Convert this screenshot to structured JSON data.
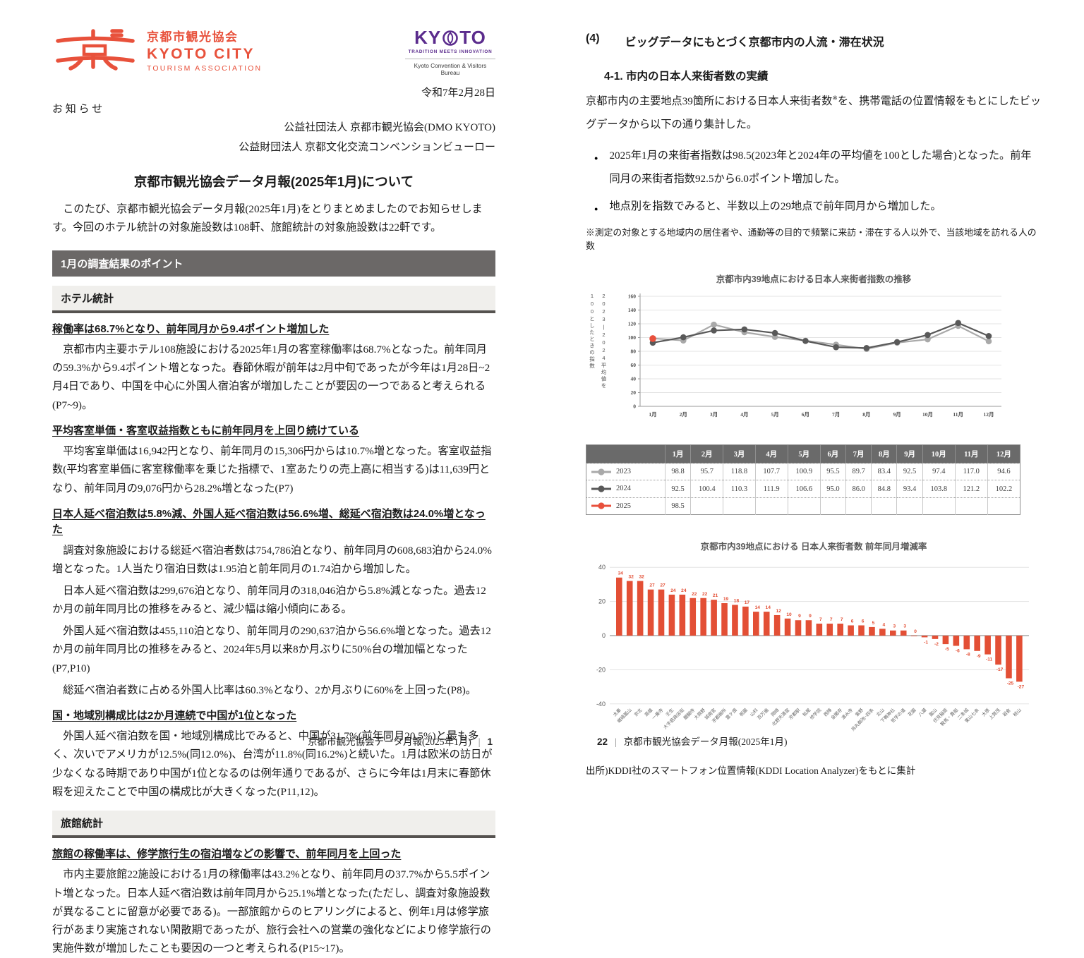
{
  "left_page": {
    "logo": {
      "org_ja": "京都市観光協会",
      "org_en_line1": "KYOTO CITY",
      "org_en_line2": "TOURISM ASSOCIATION",
      "accent_color": "#E8513B"
    },
    "partner_logo": {
      "wordmark_left": "KY",
      "wordmark_right": "TO",
      "tagline": "TRADITION MEETS INNOVATION",
      "subtitle": "Kyoto Convention & Visitors Bureau",
      "brand_color": "#5B2C8D"
    },
    "date": "令和7年2月28日",
    "notice_label": "お 知 ら せ",
    "issuer_lines": [
      "公益社団法人 京都市観光協会(DMO KYOTO)",
      "公益財団法人 京都文化交流コンベンションビューロー"
    ],
    "title": "京都市観光協会データ月報(2025年1月)について",
    "intro": "このたび、京都市観光協会データ月報(2025年1月)をとりまとめましたのでお知らせします。今回のホテル統計の対象施設数は108軒、旅館統計の対象施設数は22軒です。",
    "points_banner": "1月の調査結果のポイント",
    "sections": [
      {
        "header": "ホテル統計",
        "items": [
          {
            "heading": "稼働率は68.7%となり、前年同月から9.4ポイント増加した",
            "paragraphs": [
              "京都市内主要ホテル108施設における2025年1月の客室稼働率は68.7%となった。前年同月の59.3%から9.4ポイント増となった。春節休暇が前年は2月中旬であったが今年は1月28日~2月4日であり、中国を中心に外国人宿泊客が増加したことが要因の一つであると考えられる(P7~9)。"
            ]
          },
          {
            "heading": "平均客室単価・客室収益指数ともに前年同月を上回り続けている",
            "paragraphs": [
              "平均客室単価は16,942円となり、前年同月の15,306円からは10.7%増となった。客室収益指数(平均客室単価に客室稼働率を乗じた指標で、1室あたりの売上高に相当する)は11,639円となり、前年同月の9,076円から28.2%増となった(P7)"
            ]
          },
          {
            "heading": "日本人延べ宿泊数は5.8%減、外国人延べ宿泊数は56.6%増、総延べ宿泊数は24.0%増となった",
            "paragraphs": [
              "調査対象施設における総延べ宿泊者数は754,786泊となり、前年同月の608,683泊から24.0%増となった。1人当たり宿泊日数は1.95泊と前年同月の1.74泊から増加した。",
              "日本人延べ宿泊数は299,676泊となり、前年同月の318,046泊から5.8%減となった。過去12か月の前年同月比の推移をみると、減少幅は縮小傾向にある。",
              "外国人延べ宿泊数は455,110泊となり、前年同月の290,637泊から56.6%増となった。過去12か月の前年同月比の推移をみると、2024年5月以来8か月ぶりに50%台の増加幅となった(P7,P10)",
              "総延べ宿泊者数に占める外国人比率は60.3%となり、2か月ぶりに60%を上回った(P8)。"
            ]
          },
          {
            "heading": "国・地域別構成比は2か月連続で中国が1位となった",
            "paragraphs": [
              "外国人延べ宿泊数を国・地域別構成比でみると、中国が31.7%(前年同月20.5%)と最も多く、次いでアメリカが12.5%(同12.0%)、台湾が11.8%(同16.2%)と続いた。1月は欧米の訪日が少なくなる時期であり中国が1位となるのは例年通りであるが、さらに今年は1月末に春節休暇を迎えたことで中国の構成比が大きくなった(P11,12)。"
            ]
          }
        ]
      },
      {
        "header": "旅館統計",
        "items": [
          {
            "heading": "旅館の稼働率は、修学旅行生の宿泊増などの影響で、前年同月を上回った",
            "paragraphs": [
              "市内主要旅館22施設における1月の稼働率は43.2%となり、前年同月の37.7%から5.5ポイント増となった。日本人延べ宿泊数は前年同月から25.1%増となった(ただし、調査対象施設数が異なることに留意が必要である)。一部旅館からのヒアリングによると、例年1月は修学旅行があまり実施されない閑散期であったが、旅行会社への営業の強化などにより修学旅行の実施件数が増加したことも要因の一つと考えられる(P15~17)。"
            ]
          }
        ]
      }
    ],
    "footer": {
      "doc_title": "京都市観光協会データ月報(2025年1月)",
      "separator": "|",
      "page_number": "1"
    }
  },
  "right_page": {
    "section_number": "(4)",
    "section_title": "ビッグデータにもとづく京都市内の人流・滞在状況",
    "subsection_heading": "4-1. 市内の日本人来街者数の実績",
    "lead_before": "京都市内の主要地点39箇所における日本人来街者数",
    "lead_sup": "※",
    "lead_after": "を、携帯電話の位置情報をもとにしたビッグデータから以下の通り集計した。",
    "bullets": [
      "2025年1月の来街者指数は98.5(2023年と2024年の平均値を100とした場合)となった。前年同月の来街者指数92.5から6.0ポイント増加した。",
      "地点別を指数でみると、半数以上の29地点で前年同月から増加した。"
    ],
    "footnote": "※測定の対象とする地域内の居住者や、通勤等の目的で頻繁に来訪・滞在する人以外で、当該地域を訪れる人の数",
    "source": "出所)KDDI社のスマートフォン位置情報(KDDI Location Analyzer)をもとに集計",
    "footer": {
      "page_number": "22",
      "separator": "|",
      "doc_title": "京都市観光協会データ月報(2025年1月)"
    }
  },
  "chart_data": [
    {
      "type": "line",
      "title": "京都市内39地点における日本人来街者指数の推移",
      "ylabel_right_column": "2023|2024平均値を",
      "ylabel_left_column": "100としたときの指数",
      "x": [
        "1月",
        "2月",
        "3月",
        "4月",
        "5月",
        "6月",
        "7月",
        "8月",
        "9月",
        "10月",
        "11月",
        "12月"
      ],
      "ylim": [
        0,
        160
      ],
      "ytick_step": 20,
      "grid": true,
      "legend_position": "table-below",
      "series": [
        {
          "name": "2023",
          "color": "#A9A9A9",
          "values": [
            98.8,
            95.7,
            118.8,
            107.7,
            100.9,
            95.5,
            89.7,
            83.4,
            92.5,
            97.4,
            117.0,
            94.6
          ]
        },
        {
          "name": "2024",
          "color": "#595959",
          "values": [
            92.5,
            100.4,
            110.3,
            111.9,
            106.6,
            95.0,
            86.0,
            84.8,
            93.4,
            103.8,
            121.2,
            102.2
          ]
        },
        {
          "name": "2025",
          "color": "#E8503C",
          "values": [
            98.5
          ]
        }
      ]
    },
    {
      "type": "bar",
      "title": "京都市内39地点における 日本人来街者数 前年同月増減率",
      "bar_color": "#E34F35",
      "ylim": [
        -40,
        40
      ],
      "ytick_step": 20,
      "grid": true,
      "categories": [
        "太秦",
        "嵯峨嵐山",
        "京北",
        "高雄",
        "一乗寺",
        "壬生",
        "大手筋商店街",
        "醍醐寺",
        "大原野",
        "城南宮",
        "京都御所",
        "雲ケ畑",
        "祇園",
        "山科",
        "百万遍",
        "岡崎",
        "北野天満宮",
        "京都駅",
        "松尾",
        "修学院",
        "西陣",
        "金閣寺",
        "清水寺",
        "紫野",
        "烏丸御池~四条",
        "北山",
        "下鴨神社",
        "哲学の道",
        "花園",
        "八瀬",
        "嵐山",
        "伏見稲荷",
        "鞍馬・貴船",
        "二条城",
        "東山七条",
        "大原",
        "上賀茂",
        "岩倉",
        "桃山"
      ],
      "values": [
        34,
        32,
        32,
        27,
        27,
        24,
        24,
        22,
        22,
        21,
        19,
        18,
        17,
        14,
        14,
        12,
        10,
        9,
        9,
        7,
        7,
        7,
        6,
        6,
        5,
        4,
        3,
        3,
        0,
        -1,
        -2,
        -5,
        -6,
        -8,
        -9,
        -11,
        -17,
        -25,
        -27
      ]
    }
  ]
}
